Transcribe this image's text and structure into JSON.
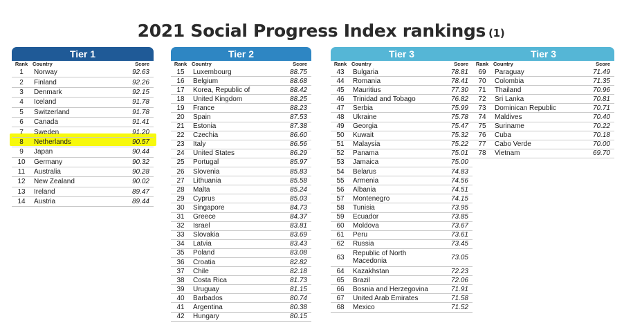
{
  "title": "2021 Social Progress Index rankings",
  "title_note": "(1)",
  "headers": {
    "rank": "Rank",
    "country": "Country",
    "score": "Score"
  },
  "tier1": {
    "label": "Tier 1",
    "rows": [
      {
        "rank": "1",
        "country": "Norway",
        "score": "92.63"
      },
      {
        "rank": "2",
        "country": "Finland",
        "score": "92.26"
      },
      {
        "rank": "3",
        "country": "Denmark",
        "score": "92.15"
      },
      {
        "rank": "4",
        "country": "Iceland",
        "score": "91.78"
      },
      {
        "rank": "5",
        "country": "Switzerland",
        "score": "91.78"
      },
      {
        "rank": "6",
        "country": "Canada",
        "score": "91.41"
      },
      {
        "rank": "7",
        "country": "Sweden",
        "score": "91.20"
      },
      {
        "rank": "8",
        "country": "Netherlands",
        "score": "90.57",
        "highlight": true
      },
      {
        "rank": "9",
        "country": "Japan",
        "score": "90.44"
      },
      {
        "rank": "10",
        "country": "Germany",
        "score": "90.32"
      },
      {
        "rank": "11",
        "country": "Australia",
        "score": "90.28"
      },
      {
        "rank": "12",
        "country": "New Zealand",
        "score": "90.02"
      },
      {
        "rank": "13",
        "country": "Ireland",
        "score": "89.47"
      },
      {
        "rank": "14",
        "country": "Austria",
        "score": "89.44"
      }
    ]
  },
  "tier2": {
    "label": "Tier 2",
    "rows": [
      {
        "rank": "15",
        "country": "Luxembourg",
        "score": "88.75"
      },
      {
        "rank": "16",
        "country": "Belgium",
        "score": "88.68"
      },
      {
        "rank": "17",
        "country": "Korea, Republic of",
        "score": "88.42"
      },
      {
        "rank": "18",
        "country": "United Kingdom",
        "score": "88.25"
      },
      {
        "rank": "19",
        "country": "France",
        "score": "88.23"
      },
      {
        "rank": "20",
        "country": "Spain",
        "score": "87.53"
      },
      {
        "rank": "21",
        "country": "Estonia",
        "score": "87.38"
      },
      {
        "rank": "22",
        "country": "Czechia",
        "score": "86.60"
      },
      {
        "rank": "23",
        "country": "Italy",
        "score": "86.56"
      },
      {
        "rank": "24",
        "country": "United States",
        "score": "86.29"
      },
      {
        "rank": "25",
        "country": "Portugal",
        "score": "85.97"
      },
      {
        "rank": "26",
        "country": "Slovenia",
        "score": "85.83"
      },
      {
        "rank": "27",
        "country": "Lithuania",
        "score": "85.58"
      },
      {
        "rank": "28",
        "country": "Malta",
        "score": "85.24"
      },
      {
        "rank": "29",
        "country": "Cyprus",
        "score": "85.03"
      },
      {
        "rank": "30",
        "country": "Singapore",
        "score": "84.73"
      },
      {
        "rank": "31",
        "country": "Greece",
        "score": "84.37"
      },
      {
        "rank": "32",
        "country": "Israel",
        "score": "83.81"
      },
      {
        "rank": "33",
        "country": "Slovakia",
        "score": "83.69"
      },
      {
        "rank": "34",
        "country": "Latvia",
        "score": "83.43"
      },
      {
        "rank": "35",
        "country": "Poland",
        "score": "83.08"
      },
      {
        "rank": "36",
        "country": "Croatia",
        "score": "82.82"
      },
      {
        "rank": "37",
        "country": "Chile",
        "score": "82.18"
      },
      {
        "rank": "38",
        "country": "Costa Rica",
        "score": "81.73"
      },
      {
        "rank": "39",
        "country": "Uruguay",
        "score": "81.15"
      },
      {
        "rank": "40",
        "country": "Barbados",
        "score": "80.74"
      },
      {
        "rank": "41",
        "country": "Argentina",
        "score": "80.38"
      },
      {
        "rank": "42",
        "country": "Hungary",
        "score": "80.15"
      }
    ]
  },
  "tier3a": {
    "label": "Tier 3",
    "rows": [
      {
        "rank": "43",
        "country": "Bulgaria",
        "score": "78.81"
      },
      {
        "rank": "44",
        "country": "Romania",
        "score": "78.41"
      },
      {
        "rank": "45",
        "country": "Mauritius",
        "score": "77.30"
      },
      {
        "rank": "46",
        "country": "Trinidad and Tobago",
        "score": "76.82"
      },
      {
        "rank": "47",
        "country": "Serbia",
        "score": "75.99"
      },
      {
        "rank": "48",
        "country": "Ukraine",
        "score": "75.78"
      },
      {
        "rank": "49",
        "country": "Georgia",
        "score": "75.47"
      },
      {
        "rank": "50",
        "country": "Kuwait",
        "score": "75.32"
      },
      {
        "rank": "51",
        "country": "Malaysia",
        "score": "75.22"
      },
      {
        "rank": "52",
        "country": "Panama",
        "score": "75.01"
      },
      {
        "rank": "53",
        "country": "Jamaica",
        "score": "75.00"
      },
      {
        "rank": "54",
        "country": "Belarus",
        "score": "74.83"
      },
      {
        "rank": "55",
        "country": "Armenia",
        "score": "74.56"
      },
      {
        "rank": "56",
        "country": "Albania",
        "score": "74.51"
      },
      {
        "rank": "57",
        "country": "Montenegro",
        "score": "74.15"
      },
      {
        "rank": "58",
        "country": "Tunisia",
        "score": "73.95"
      },
      {
        "rank": "59",
        "country": "Ecuador",
        "score": "73.85"
      },
      {
        "rank": "60",
        "country": "Moldova",
        "score": "73.67"
      },
      {
        "rank": "61",
        "country": "Peru",
        "score": "73.61"
      },
      {
        "rank": "62",
        "country": "Russia",
        "score": "73.45"
      },
      {
        "rank": "63",
        "country": "Republic of North Macedonia",
        "score": "73.05",
        "tall": true
      },
      {
        "rank": "64",
        "country": "Kazakhstan",
        "score": "72.23"
      },
      {
        "rank": "65",
        "country": "Brazil",
        "score": "72.06"
      },
      {
        "rank": "66",
        "country": "Bosnia and Herzegovina",
        "score": "71.91"
      },
      {
        "rank": "67",
        "country": "United Arab Emirates",
        "score": "71.58"
      },
      {
        "rank": "68",
        "country": "Mexico",
        "score": "71.52"
      }
    ]
  },
  "tier3b": {
    "label": "Tier 3",
    "rows": [
      {
        "rank": "69",
        "country": "Paraguay",
        "score": "71.49"
      },
      {
        "rank": "70",
        "country": "Colombia",
        "score": "71.35"
      },
      {
        "rank": "71",
        "country": "Thailand",
        "score": "70.96"
      },
      {
        "rank": "72",
        "country": "Sri Lanka",
        "score": "70.81"
      },
      {
        "rank": "73",
        "country": "Dominican Republic",
        "score": "70.71"
      },
      {
        "rank": "74",
        "country": "Maldives",
        "score": "70.40"
      },
      {
        "rank": "75",
        "country": "Suriname",
        "score": "70.22"
      },
      {
        "rank": "76",
        "country": "Cuba",
        "score": "70.18"
      },
      {
        "rank": "77",
        "country": "Cabo Verde",
        "score": "70.00"
      },
      {
        "rank": "78",
        "country": "Vietnam",
        "score": "69.70"
      }
    ]
  }
}
